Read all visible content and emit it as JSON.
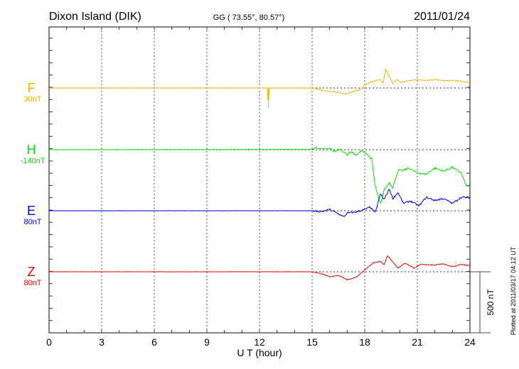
{
  "chart_data": {
    "type": "line",
    "title": "Dixon Island (DIK)",
    "coords": "GG ( 73.55°,  80.57°)",
    "date": "2011/01/24",
    "xlabel": "U T (hour)",
    "xlim": [
      0,
      24
    ],
    "xticks": [
      "0",
      "3",
      "6",
      "9",
      "12",
      "15",
      "18",
      "21",
      "24"
    ],
    "scale_bar": "500 nT",
    "scale_bar_value": 500,
    "plotted_at": "Plotted at 2011/03/17 04:12 UT",
    "series": [
      {
        "name": "F",
        "baseline_label": "30nT",
        "color": "#f5b000",
        "noise": 6,
        "points": [
          [
            0,
            0
          ],
          [
            12.45,
            0
          ],
          [
            12.5,
            -165
          ],
          [
            12.55,
            0
          ],
          [
            15,
            0
          ],
          [
            15.5,
            -15
          ],
          [
            16,
            -30
          ],
          [
            16.5,
            -35
          ],
          [
            16.9,
            -50
          ],
          [
            17.3,
            -30
          ],
          [
            17.8,
            -10
          ],
          [
            18,
            25
          ],
          [
            18.5,
            55
          ],
          [
            18.9,
            70
          ],
          [
            19.05,
            40
          ],
          [
            19.2,
            150
          ],
          [
            19.45,
            80
          ],
          [
            19.6,
            35
          ],
          [
            19.8,
            70
          ],
          [
            20.1,
            45
          ],
          [
            20.5,
            60
          ],
          [
            21,
            70
          ],
          [
            21.5,
            60
          ],
          [
            22,
            70
          ],
          [
            22.5,
            60
          ],
          [
            23,
            60
          ],
          [
            23.5,
            55
          ],
          [
            24,
            45
          ]
        ]
      },
      {
        "name": "H",
        "baseline_label": "-140nT",
        "color": "#00e600",
        "noise": 14,
        "points": [
          [
            0,
            0
          ],
          [
            15,
            3
          ],
          [
            15.2,
            20
          ],
          [
            15.5,
            5
          ],
          [
            16,
            10
          ],
          [
            16.3,
            -15
          ],
          [
            16.6,
            5
          ],
          [
            17,
            -40
          ],
          [
            17.2,
            -15
          ],
          [
            17.5,
            -45
          ],
          [
            17.8,
            -10
          ],
          [
            18.1,
            -30
          ],
          [
            18.4,
            -80
          ],
          [
            18.6,
            -300
          ],
          [
            18.9,
            -450
          ],
          [
            19.1,
            -330
          ],
          [
            19.4,
            -270
          ],
          [
            19.6,
            -310
          ],
          [
            19.9,
            -170
          ],
          [
            20.2,
            -170
          ],
          [
            20.5,
            -150
          ],
          [
            21,
            -190
          ],
          [
            21.5,
            -200
          ],
          [
            22,
            -150
          ],
          [
            22.5,
            -175
          ],
          [
            23,
            -145
          ],
          [
            23.5,
            -190
          ],
          [
            23.8,
            -300
          ],
          [
            24,
            -290
          ]
        ]
      },
      {
        "name": "E",
        "baseline_label": "80nT",
        "color": "#0000ee",
        "noise": 14,
        "points": [
          [
            0,
            0
          ],
          [
            15,
            0
          ],
          [
            15.5,
            -10
          ],
          [
            16,
            10
          ],
          [
            16.5,
            -25
          ],
          [
            16.8,
            -50
          ],
          [
            17,
            -20
          ],
          [
            17.5,
            -10
          ],
          [
            18,
            10
          ],
          [
            18.3,
            30
          ],
          [
            18.6,
            -15
          ],
          [
            18.9,
            140
          ],
          [
            19.1,
            90
          ],
          [
            19.4,
            180
          ],
          [
            19.6,
            100
          ],
          [
            19.9,
            150
          ],
          [
            20.2,
            60
          ],
          [
            20.6,
            80
          ],
          [
            21.1,
            40
          ],
          [
            21.5,
            110
          ],
          [
            22,
            85
          ],
          [
            22.5,
            100
          ],
          [
            23,
            60
          ],
          [
            23.5,
            110
          ],
          [
            24,
            110
          ]
        ]
      },
      {
        "name": "Z",
        "baseline_label": "80nT",
        "color": "#ee0000",
        "noise": 6,
        "points": [
          [
            0,
            0
          ],
          [
            15,
            0
          ],
          [
            15.5,
            -15
          ],
          [
            16,
            -40
          ],
          [
            16.5,
            -30
          ],
          [
            17,
            -65
          ],
          [
            17.5,
            -45
          ],
          [
            18,
            15
          ],
          [
            18.5,
            75
          ],
          [
            18.9,
            85
          ],
          [
            19.1,
            55
          ],
          [
            19.3,
            135
          ],
          [
            19.6,
            80
          ],
          [
            19.9,
            30
          ],
          [
            20.3,
            70
          ],
          [
            20.8,
            30
          ],
          [
            21.2,
            60
          ],
          [
            22,
            55
          ],
          [
            22.5,
            65
          ],
          [
            23,
            40
          ],
          [
            23.5,
            60
          ],
          [
            24,
            50
          ]
        ]
      }
    ]
  }
}
